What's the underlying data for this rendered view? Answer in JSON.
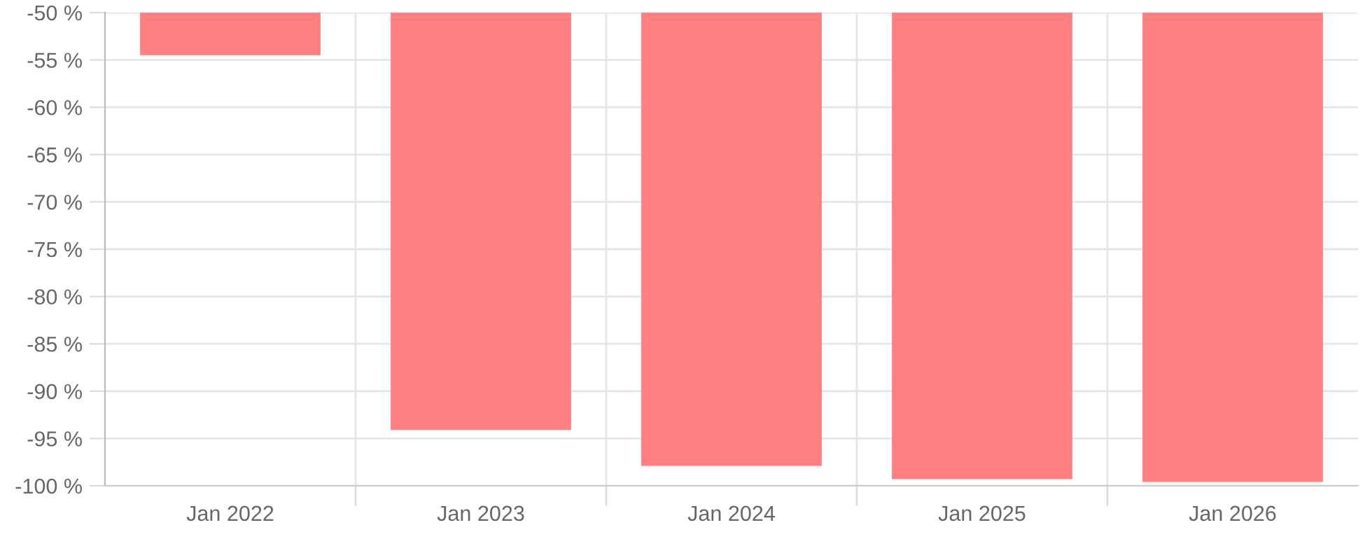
{
  "chart_data": {
    "type": "bar",
    "categories": [
      "Jan 2022",
      "Jan 2023",
      "Jan 2024",
      "Jan 2025",
      "Jan 2026"
    ],
    "values": [
      -54.5,
      -94.1,
      -97.9,
      -99.3,
      -99.6
    ],
    "color": "#ff8080",
    "ylim": [
      -100,
      -50
    ],
    "yticks": [
      {
        "value": -100,
        "label": "-100 %"
      },
      {
        "value": -95,
        "label": "-95 %"
      },
      {
        "value": -90,
        "label": "-90 %"
      },
      {
        "value": -85,
        "label": "-85 %"
      },
      {
        "value": -80,
        "label": "-80 %"
      },
      {
        "value": -75,
        "label": "-75 %"
      },
      {
        "value": -70,
        "label": "-70 %"
      },
      {
        "value": -65,
        "label": "-65 %"
      },
      {
        "value": -60,
        "label": "-60 %"
      },
      {
        "value": -55,
        "label": "-55 %"
      },
      {
        "value": -50,
        "label": "-50 %"
      }
    ],
    "grid": true,
    "legend": false
  }
}
